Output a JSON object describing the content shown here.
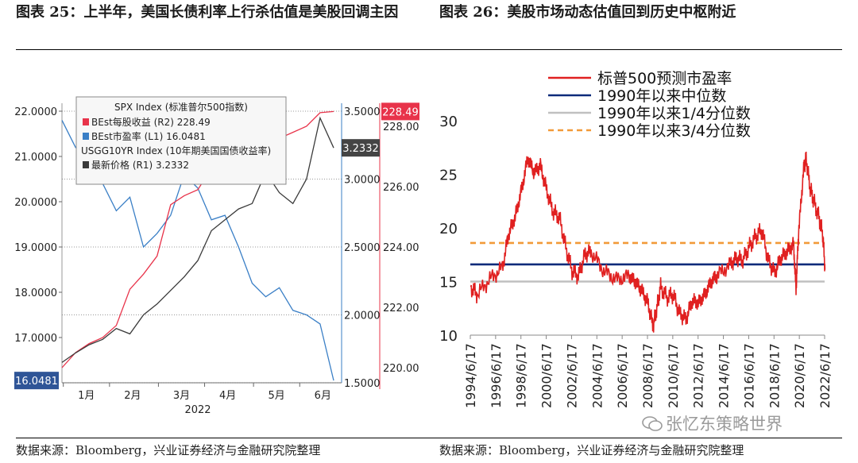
{
  "titles": {
    "left": "图表 25：上半年，美国长债利率上行杀估值是美股回调主因",
    "right": "图表 26：美股市场动态估值回到历史中枢附近"
  },
  "sources": {
    "left": "数据来源：Bloomberg，兴业证券经济与金融研究院整理",
    "right": "数据来源：Bloomberg，兴业证券经济与金融研究院整理"
  },
  "watermark": "张忆东策略世界",
  "colors": {
    "red": "#e8334a",
    "blue": "#3a7fc6",
    "black": "#3a3a3a",
    "navy": "#0b2a7a",
    "grey": "#c0c0c0",
    "orange": "#f29a38",
    "lineRed": "#e02020"
  },
  "chart_data": [
    {
      "type": "line",
      "xlabel": "2022",
      "x_ticks": [
        "1月",
        "2月",
        "3月",
        "4月",
        "5月",
        "6月"
      ],
      "axes": {
        "L1": {
          "ticks": [
            "22.0000",
            "21.0000",
            "20.0000",
            "19.0000",
            "18.0000",
            "17.0000"
          ],
          "ylim": [
            16,
            22
          ]
        },
        "R1": {
          "ticks": [
            "3.5000",
            "3.0000",
            "2.5000",
            "2.0000",
            "1.5000"
          ],
          "ylim": [
            1.5,
            3.5
          ]
        },
        "R2": {
          "ticks": [
            "228.00",
            "226.00",
            "224.00",
            "222.00",
            "220.00"
          ],
          "ylim": [
            219.5,
            228.5
          ]
        }
      },
      "legend": {
        "header": "SPX Index (标准普尔500指数)",
        "items": [
          {
            "label": "BEst每股收益 (R2) 228.49",
            "color": "#e8334a"
          },
          {
            "label": "BEst市盈率 (L1)        16.0481",
            "color": "#3a7fc6"
          }
        ],
        "header2": "USGG10YR Index (10年期美国国债收益率)",
        "items2": [
          {
            "label": "最新价格 (R1)        3.2332",
            "color": "#3a3a3a"
          }
        ]
      },
      "end_labels": {
        "pe": "16.0481",
        "eps": "228.49",
        "yield": "3.2332"
      },
      "series": [
        {
          "name": "BEst市盈率",
          "axis": "L1",
          "x": [
            0,
            0.05,
            0.1,
            0.15,
            0.2,
            0.25,
            0.3,
            0.35,
            0.4,
            0.45,
            0.5,
            0.55,
            0.6,
            0.65,
            0.7,
            0.75,
            0.8,
            0.85,
            0.9,
            0.95,
            1
          ],
          "values": [
            21.8,
            21.2,
            20.9,
            20.4,
            19.8,
            20.1,
            19.0,
            19.3,
            19.7,
            20.6,
            20.3,
            19.6,
            19.7,
            19.0,
            18.2,
            17.9,
            18.1,
            17.6,
            17.5,
            17.3,
            16.05
          ]
        },
        {
          "name": "BEst每股收益",
          "axis": "R2",
          "x": [
            0,
            0.05,
            0.1,
            0.15,
            0.2,
            0.25,
            0.3,
            0.35,
            0.4,
            0.45,
            0.5,
            0.55,
            0.6,
            0.65,
            0.7,
            0.75,
            0.8,
            0.85,
            0.9,
            0.95,
            1
          ],
          "values": [
            220.0,
            220.5,
            220.8,
            221.0,
            221.4,
            222.6,
            223.1,
            223.7,
            225.4,
            225.7,
            225.9,
            226.6,
            226.8,
            227.2,
            227.1,
            227.4,
            227.6,
            227.8,
            228.0,
            228.45,
            228.49
          ]
        },
        {
          "name": "最新价格",
          "axis": "R1",
          "x": [
            0,
            0.05,
            0.1,
            0.15,
            0.2,
            0.25,
            0.3,
            0.35,
            0.4,
            0.45,
            0.5,
            0.55,
            0.6,
            0.65,
            0.7,
            0.75,
            0.8,
            0.85,
            0.9,
            0.95,
            1
          ],
          "values": [
            1.65,
            1.72,
            1.78,
            1.82,
            1.9,
            1.86,
            2.0,
            2.08,
            2.18,
            2.28,
            2.4,
            2.62,
            2.7,
            2.78,
            2.82,
            3.05,
            2.9,
            2.82,
            3.0,
            3.45,
            3.23
          ]
        }
      ]
    },
    {
      "type": "line",
      "x_ticks": [
        "1994/6/17",
        "1996/6/17",
        "1998/6/17",
        "2000/6/17",
        "2002/6/17",
        "2004/6/17",
        "2006/6/17",
        "2008/6/17",
        "2010/6/17",
        "2012/6/17",
        "2014/6/17",
        "2016/6/17",
        "2018/6/17",
        "2020/6/17",
        "2022/6/17"
      ],
      "y_ticks": [
        "30",
        "25",
        "20",
        "15",
        "10"
      ],
      "ylim": [
        10,
        30
      ],
      "legend": [
        "标普500预测市盈率",
        "1990年以来中位数",
        "1990年以来1/4分位数",
        "1990年以来3/4分位数"
      ],
      "series": [
        {
          "name": "标普500预测市盈率",
          "x": [
            1994.5,
            1995,
            1996,
            1997,
            1997.5,
            1998,
            1998.5,
            1999,
            1999.5,
            2000,
            2000.5,
            2001,
            2001.5,
            2002,
            2002.5,
            2003,
            2003.5,
            2004,
            2005,
            2006,
            2007,
            2007.5,
            2008,
            2008.5,
            2008.9,
            2009.2,
            2009.5,
            2010,
            2010.5,
            2011,
            2011.5,
            2012,
            2012.5,
            2013,
            2013.5,
            2014,
            2015,
            2015.5,
            2016,
            2016.5,
            2017,
            2017.5,
            2018,
            2018.5,
            2019,
            2019.5,
            2020,
            2020.2,
            2020.4,
            2020.8,
            2021,
            2021.3,
            2021.6,
            2022,
            2022.3,
            2022.5
          ],
          "values": [
            14.5,
            13.8,
            15.2,
            16.3,
            19.5,
            21.0,
            23.5,
            26.5,
            25.2,
            25.8,
            23.5,
            21.5,
            21.0,
            18.2,
            16.0,
            15.5,
            17.5,
            17.8,
            16.0,
            15.2,
            15.5,
            15.0,
            14.2,
            13.0,
            10.8,
            12.5,
            14.5,
            13.5,
            13.8,
            12.0,
            11.5,
            13.2,
            13.0,
            13.8,
            15.0,
            15.6,
            16.6,
            17.2,
            17.0,
            18.2,
            19.2,
            19.8,
            17.0,
            15.8,
            17.2,
            17.8,
            18.5,
            14.3,
            19.5,
            25.5,
            26.5,
            23.8,
            22.5,
            21.0,
            19.5,
            16.1
          ]
        },
        {
          "name": "1990年以来中位数",
          "values": [
            16.6
          ]
        },
        {
          "name": "1990年以来1/4分位数",
          "values": [
            15.0
          ]
        },
        {
          "name": "1990年以来3/4分位数",
          "values": [
            18.6
          ]
        }
      ]
    }
  ]
}
